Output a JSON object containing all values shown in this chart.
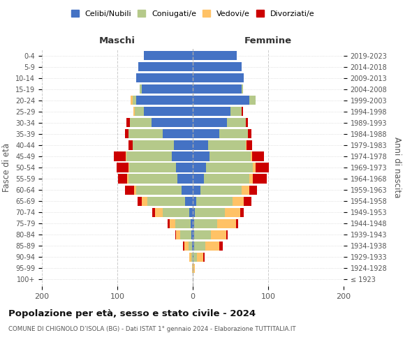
{
  "age_groups": [
    "100+",
    "95-99",
    "90-94",
    "85-89",
    "80-84",
    "75-79",
    "70-74",
    "65-69",
    "60-64",
    "55-59",
    "50-54",
    "45-49",
    "40-44",
    "35-39",
    "30-34",
    "25-29",
    "20-24",
    "15-19",
    "10-14",
    "5-9",
    "0-4"
  ],
  "birth_years": [
    "≤ 1923",
    "1924-1928",
    "1929-1933",
    "1934-1938",
    "1939-1943",
    "1944-1948",
    "1949-1953",
    "1954-1958",
    "1959-1963",
    "1964-1968",
    "1969-1973",
    "1974-1978",
    "1979-1983",
    "1984-1988",
    "1989-1993",
    "1994-1998",
    "1999-2003",
    "2004-2008",
    "2009-2013",
    "2014-2018",
    "2019-2023"
  ],
  "maschi": {
    "celibi": [
      0,
      0,
      0,
      1,
      2,
      3,
      5,
      10,
      15,
      20,
      22,
      28,
      25,
      40,
      55,
      65,
      75,
      68,
      75,
      72,
      65
    ],
    "coniugati": [
      0,
      0,
      2,
      5,
      15,
      20,
      35,
      50,
      60,
      65,
      62,
      60,
      55,
      45,
      28,
      12,
      5,
      2,
      0,
      0,
      0
    ],
    "vedovi": [
      0,
      1,
      3,
      5,
      5,
      8,
      10,
      8,
      3,
      2,
      1,
      1,
      0,
      0,
      0,
      2,
      2,
      0,
      0,
      0,
      0
    ],
    "divorziati": [
      0,
      0,
      0,
      2,
      1,
      2,
      4,
      5,
      12,
      12,
      16,
      16,
      5,
      5,
      5,
      0,
      0,
      0,
      0,
      0,
      0
    ]
  },
  "femmine": {
    "nubili": [
      0,
      0,
      1,
      2,
      2,
      2,
      3,
      5,
      10,
      15,
      18,
      22,
      20,
      35,
      45,
      50,
      75,
      65,
      68,
      65,
      58
    ],
    "coniugate": [
      0,
      1,
      5,
      15,
      22,
      30,
      40,
      48,
      55,
      60,
      62,
      55,
      50,
      38,
      25,
      15,
      8,
      2,
      0,
      0,
      0
    ],
    "vedove": [
      0,
      2,
      8,
      18,
      20,
      25,
      20,
      15,
      10,
      5,
      3,
      2,
      1,
      0,
      0,
      0,
      0,
      0,
      0,
      0,
      0
    ],
    "divorziate": [
      0,
      0,
      2,
      5,
      2,
      3,
      5,
      10,
      10,
      18,
      18,
      15,
      8,
      5,
      3,
      2,
      0,
      0,
      0,
      0,
      0
    ]
  },
  "colors": {
    "celibi_nubili": "#4472c4",
    "coniugati": "#b5c98a",
    "vedovi": "#ffc266",
    "divorziati": "#cc0000"
  },
  "xlim": [
    -200,
    200
  ],
  "xticks": [
    -200,
    -100,
    0,
    100,
    200
  ],
  "xticklabels": [
    "200",
    "100",
    "0",
    "100",
    "200"
  ],
  "title": "Popolazione per età, sesso e stato civile - 2024",
  "subtitle": "COMUNE DI CHIGNOLO D’ISOLA (BG) - Dati ISTAT 1° gennaio 2024 - Elaborazione TUTTITALIA.IT",
  "ylabel_left": "Fasce di età",
  "ylabel_right": "Anni di nascita",
  "label_maschi": "Maschi",
  "label_femmine": "Femmine",
  "legend_labels": [
    "Celibi/Nubili",
    "Coniugati/e",
    "Vedovi/e",
    "Divorziati/e"
  ],
  "background_color": "#ffffff",
  "bar_height": 0.82
}
